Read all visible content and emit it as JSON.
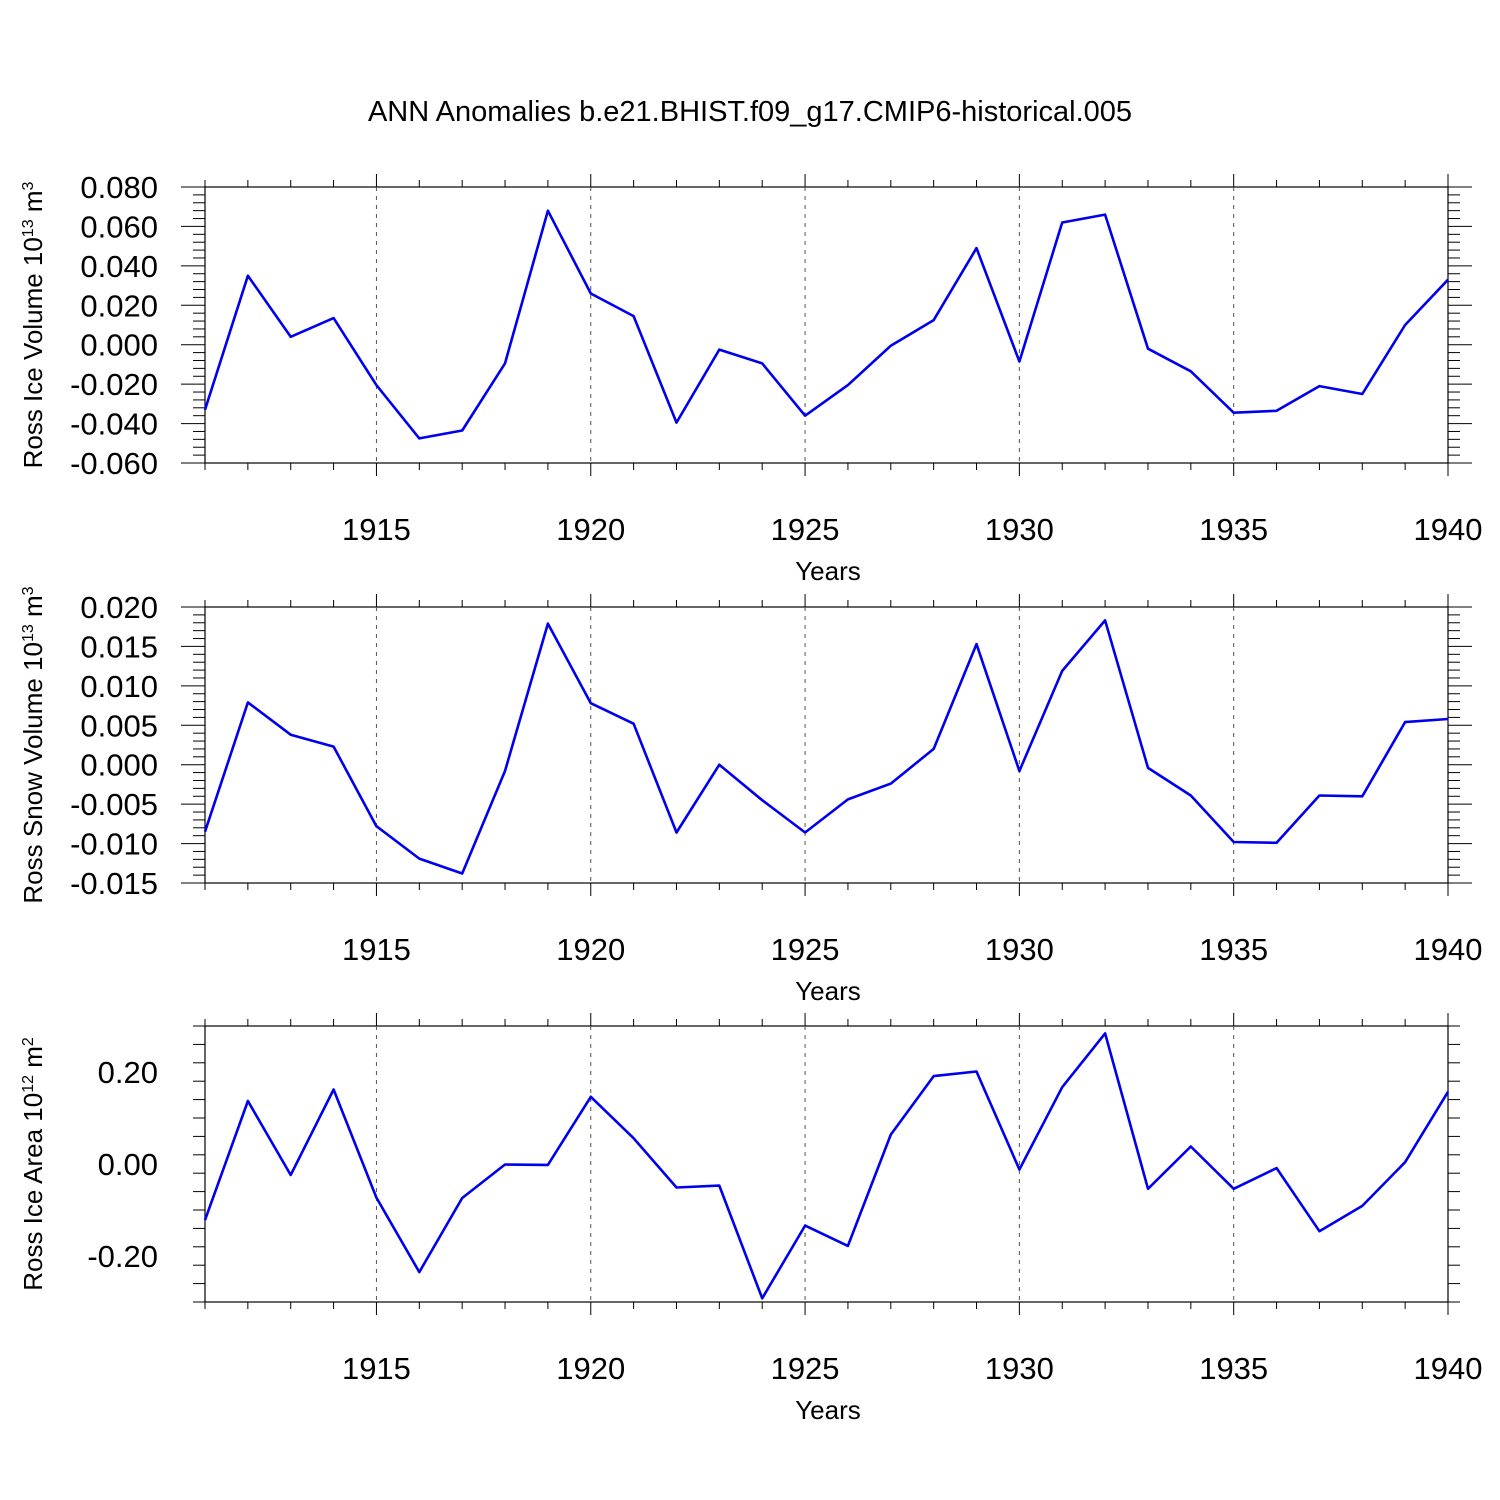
{
  "chart_data": [
    {
      "type": "line",
      "title": "ANN Anomalies b.e21.BHIST.f09_g17.CMIP6-historical.005",
      "xlabel": "Years",
      "ylabel_main": "Ross Ice Volume 10",
      "ylabel_exp": "13",
      "ylabel_unit": " m",
      "ylabel_unit_exp": "3",
      "xlim": [
        1911,
        1940
      ],
      "ylim": [
        -0.06,
        0.08
      ],
      "x_ticks": [
        1915,
        1920,
        1925,
        1930,
        1935,
        1940
      ],
      "y_ticks": [
        "0.080",
        "0.060",
        "0.040",
        "0.020",
        "0.000",
        "-0.020",
        "-0.040",
        "-0.060"
      ],
      "y_tick_values": [
        0.08,
        0.06,
        0.04,
        0.02,
        0.0,
        -0.02,
        -0.04,
        -0.06
      ],
      "line_color": "#0000ee",
      "x": [
        1911,
        1912,
        1913,
        1914,
        1915,
        1916,
        1917,
        1918,
        1919,
        1920,
        1921,
        1922,
        1923,
        1924,
        1925,
        1926,
        1927,
        1928,
        1929,
        1930,
        1931,
        1932,
        1933,
        1934,
        1935,
        1936,
        1937,
        1938,
        1939,
        1940
      ],
      "values": [
        -0.033,
        0.035,
        0.004,
        0.0135,
        -0.0205,
        -0.0475,
        -0.0435,
        -0.0095,
        0.068,
        0.026,
        0.0145,
        -0.0395,
        -0.0025,
        -0.0095,
        -0.036,
        -0.0205,
        -0.0005,
        0.0125,
        0.049,
        -0.0085,
        0.062,
        0.066,
        -0.002,
        -0.0135,
        -0.0345,
        -0.0335,
        -0.021,
        -0.025,
        0.01,
        0.033
      ]
    },
    {
      "type": "line",
      "xlabel": "Years",
      "ylabel_main": "Ross Snow Volume 10",
      "ylabel_exp": "13",
      "ylabel_unit": " m",
      "ylabel_unit_exp": "3",
      "xlim": [
        1911,
        1940
      ],
      "ylim": [
        -0.015,
        0.02
      ],
      "x_ticks": [
        1915,
        1920,
        1925,
        1930,
        1935,
        1940
      ],
      "y_ticks": [
        "0.020",
        "0.015",
        "0.010",
        "0.005",
        "0.000",
        "-0.005",
        "-0.010",
        "-0.015"
      ],
      "y_tick_values": [
        0.02,
        0.015,
        0.01,
        0.005,
        0.0,
        -0.005,
        -0.01,
        -0.015
      ],
      "line_color": "#0000ee",
      "x": [
        1911,
        1912,
        1913,
        1914,
        1915,
        1916,
        1917,
        1918,
        1919,
        1920,
        1921,
        1922,
        1923,
        1924,
        1925,
        1926,
        1927,
        1928,
        1929,
        1930,
        1931,
        1932,
        1933,
        1934,
        1935,
        1936,
        1937,
        1938,
        1939,
        1940
      ],
      "values": [
        -0.0085,
        0.0079,
        0.0038,
        0.0023,
        -0.0078,
        -0.0119,
        -0.0138,
        -0.0008,
        0.0179,
        0.0078,
        0.0052,
        -0.0086,
        0.0,
        -0.0045,
        -0.0086,
        -0.0044,
        -0.0024,
        0.002,
        0.0153,
        -0.0008,
        0.0119,
        0.0183,
        -0.0004,
        -0.0039,
        -0.0098,
        -0.0099,
        -0.0039,
        -0.004,
        0.0054,
        0.0058
      ]
    },
    {
      "type": "line",
      "xlabel": "Years",
      "ylabel_main": "Ross Ice Area 10",
      "ylabel_exp": "12",
      "ylabel_unit": " m",
      "ylabel_unit_exp": "2",
      "xlim": [
        1911,
        1940
      ],
      "ylim": [
        -0.3,
        0.3
      ],
      "x_ticks": [
        1915,
        1920,
        1925,
        1930,
        1935,
        1940
      ],
      "y_ticks": [
        "0.20",
        "0.00",
        "-0.20"
      ],
      "y_tick_values": [
        0.2,
        0.0,
        -0.2
      ],
      "line_color": "#0000ee",
      "x": [
        1911,
        1912,
        1913,
        1914,
        1915,
        1916,
        1917,
        1918,
        1919,
        1920,
        1921,
        1922,
        1923,
        1924,
        1925,
        1926,
        1927,
        1928,
        1929,
        1930,
        1931,
        1932,
        1933,
        1934,
        1935,
        1936,
        1937,
        1938,
        1939,
        1940
      ],
      "values": [
        -0.122,
        0.137,
        -0.024,
        0.162,
        -0.073,
        -0.235,
        -0.074,
        -0.001,
        -0.002,
        0.146,
        0.056,
        -0.051,
        -0.047,
        -0.292,
        -0.134,
        -0.178,
        0.064,
        0.191,
        0.201,
        -0.012,
        0.167,
        0.284,
        -0.054,
        0.038,
        -0.054,
        -0.009,
        -0.146,
        -0.091,
        0.004,
        0.157
      ]
    }
  ]
}
